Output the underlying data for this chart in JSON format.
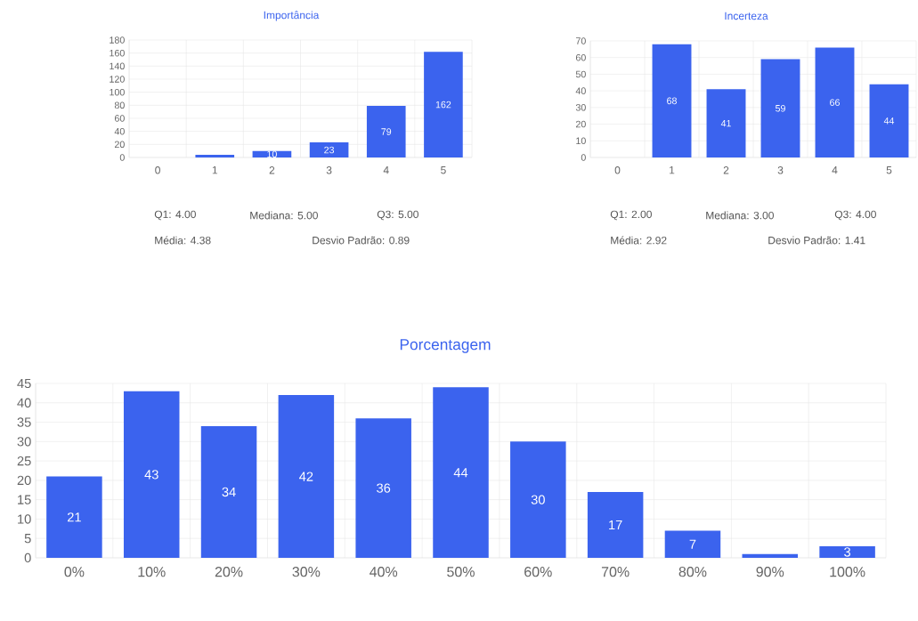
{
  "chart_data": [
    {
      "type": "bar",
      "title": "Importância",
      "categories": [
        "0",
        "1",
        "2",
        "3",
        "4",
        "5"
      ],
      "values": [
        0,
        4,
        10,
        23,
        79,
        162
      ],
      "color": "#3b63ee",
      "ylim": [
        0,
        180
      ],
      "yticks": [
        0,
        20,
        40,
        60,
        80,
        100,
        120,
        140,
        160,
        180
      ],
      "grid": true,
      "value_labels": [
        null,
        null,
        "10",
        "23",
        "79",
        "162"
      ],
      "annotations": [
        "Q1: 4.00",
        "Mediana: 5.00",
        "Q3: 5.00",
        "Média: 4.38",
        "Desvio Padrão: 0.89"
      ]
    },
    {
      "type": "bar",
      "title": "Incerteza",
      "categories": [
        "0",
        "1",
        "2",
        "3",
        "4",
        "5"
      ],
      "values": [
        0,
        68,
        41,
        59,
        66,
        44
      ],
      "color": "#3b63ee",
      "ylim": [
        0,
        70
      ],
      "yticks": [
        0,
        10,
        20,
        30,
        40,
        50,
        60,
        70
      ],
      "grid": true,
      "value_labels": [
        null,
        "68",
        "41",
        "59",
        "66",
        "44"
      ],
      "annotations": [
        "Q1: 2.00",
        "Mediana: 3.00",
        "Q3: 4.00",
        "Média: 2.92",
        "Desvio Padrão: 1.41"
      ]
    },
    {
      "type": "bar",
      "title": "Porcentagem",
      "categories": [
        "0%",
        "10%",
        "20%",
        "30%",
        "40%",
        "50%",
        "60%",
        "70%",
        "80%",
        "90%",
        "100%"
      ],
      "values": [
        21,
        43,
        34,
        42,
        36,
        44,
        30,
        17,
        7,
        1,
        3
      ],
      "color": "#3b63ee",
      "ylim": [
        0,
        45
      ],
      "yticks": [
        0,
        5,
        10,
        15,
        20,
        25,
        30,
        35,
        40,
        45
      ],
      "grid": true,
      "value_labels": [
        "21",
        "43",
        "34",
        "42",
        "36",
        "44",
        "30",
        "17",
        "7",
        null,
        "3"
      ]
    }
  ]
}
